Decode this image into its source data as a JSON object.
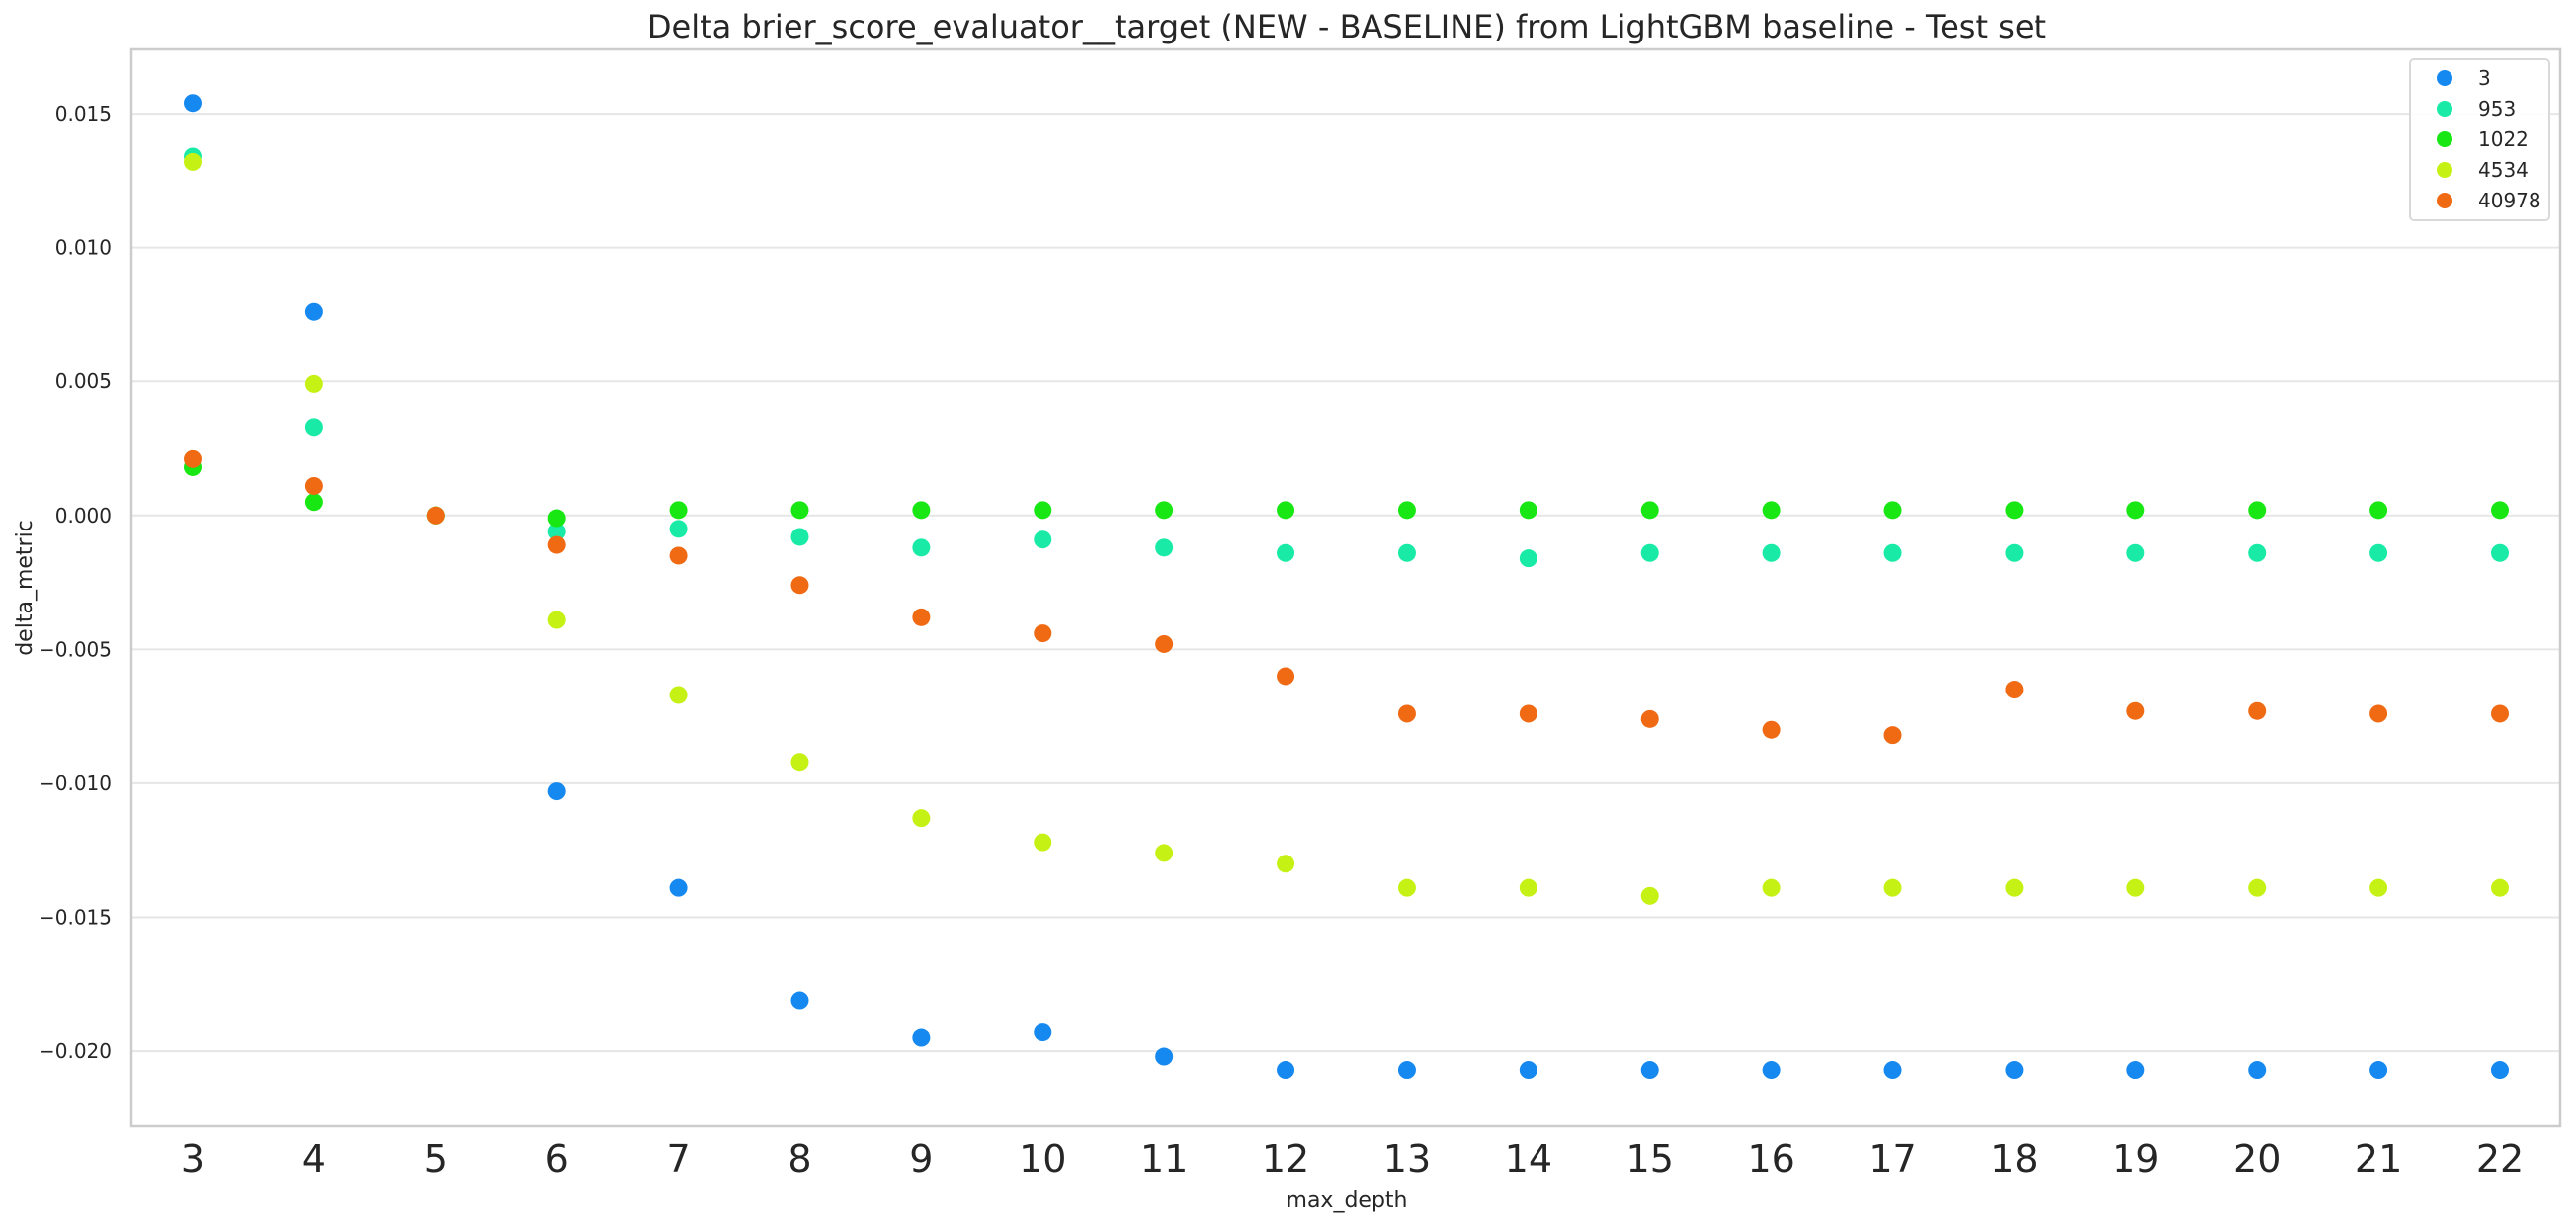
{
  "chart_data": {
    "type": "scatter",
    "title": "Delta brier_score_evaluator__target (NEW - BASELINE) from LightGBM baseline - Test set",
    "xlabel": "max_depth",
    "ylabel": "delta_metric",
    "categories": [
      "3",
      "4",
      "5",
      "6",
      "7",
      "8",
      "9",
      "10",
      "11",
      "12",
      "13",
      "14",
      "15",
      "16",
      "17",
      "18",
      "19",
      "20",
      "21",
      "22"
    ],
    "ylim": [
      -0.0228,
      0.0174
    ],
    "yticks": [
      0.015,
      0.01,
      0.005,
      0.0,
      -0.005,
      -0.01,
      -0.015,
      -0.02
    ],
    "ytick_labels": [
      "0.015",
      "0.010",
      "0.005",
      "0.000",
      "−0.005",
      "−0.010",
      "−0.015",
      "−0.020"
    ],
    "grid": "horizontal",
    "legend_position": "top-right",
    "series": [
      {
        "name": "3",
        "color": "#1689f0",
        "values": [
          0.0154,
          0.0076,
          0.0,
          -0.0103,
          -0.0139,
          -0.0181,
          -0.0195,
          -0.0193,
          -0.0202,
          -0.0207,
          -0.0207,
          -0.0207,
          -0.0207,
          -0.0207,
          -0.0207,
          -0.0207,
          -0.0207,
          -0.0207,
          -0.0207,
          -0.0207
        ]
      },
      {
        "name": "953",
        "color": "#19eba7",
        "values": [
          0.0134,
          0.0033,
          0.0,
          -0.0006,
          -0.0005,
          -0.0008,
          -0.0012,
          -0.0009,
          -0.0012,
          -0.0014,
          -0.0014,
          -0.0016,
          -0.0014,
          -0.0014,
          -0.0014,
          -0.0014,
          -0.0014,
          -0.0014,
          -0.0014,
          -0.0014
        ]
      },
      {
        "name": "1022",
        "color": "#18e713",
        "values": [
          0.0018,
          0.0005,
          0.0,
          -0.0001,
          0.0002,
          0.0002,
          0.0002,
          0.0002,
          0.0002,
          0.0002,
          0.0002,
          0.0002,
          0.0002,
          0.0002,
          0.0002,
          0.0002,
          0.0002,
          0.0002,
          0.0002,
          0.0002
        ]
      },
      {
        "name": "4534",
        "color": "#c6f114",
        "values": [
          0.0132,
          0.0049,
          0.0,
          -0.0039,
          -0.0067,
          -0.0092,
          -0.0113,
          -0.0122,
          -0.0126,
          -0.013,
          -0.0139,
          -0.0139,
          -0.0142,
          -0.0139,
          -0.0139,
          -0.0139,
          -0.0139,
          -0.0139,
          -0.0139,
          -0.0139
        ]
      },
      {
        "name": "40978",
        "color": "#f06a14",
        "values": [
          0.0021,
          0.0011,
          0.0,
          -0.0011,
          -0.0015,
          -0.0026,
          -0.0038,
          -0.0044,
          -0.0048,
          -0.006,
          -0.0074,
          -0.0074,
          -0.0076,
          -0.008,
          -0.0082,
          -0.0065,
          -0.0073,
          -0.0073,
          -0.0074,
          -0.0074
        ]
      }
    ]
  }
}
